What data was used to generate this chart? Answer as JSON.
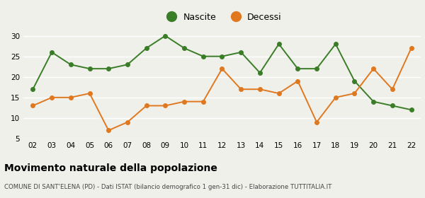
{
  "years": [
    "02",
    "03",
    "04",
    "05",
    "06",
    "07",
    "08",
    "09",
    "10",
    "11",
    "12",
    "13",
    "14",
    "15",
    "16",
    "17",
    "18",
    "19",
    "20",
    "21",
    "22"
  ],
  "nascite": [
    17,
    26,
    23,
    22,
    22,
    23,
    27,
    30,
    27,
    25,
    25,
    26,
    21,
    28,
    22,
    22,
    28,
    19,
    14,
    13,
    12
  ],
  "decessi": [
    13,
    15,
    15,
    16,
    7,
    9,
    13,
    13,
    14,
    14,
    22,
    17,
    17,
    16,
    19,
    9,
    15,
    16,
    22,
    17,
    27
  ],
  "nascite_color": "#3a7d27",
  "decessi_color": "#e07820",
  "bg_color": "#f0f0eb",
  "grid_color": "#ffffff",
  "title": "Movimento naturale della popolazione",
  "subtitle": "COMUNE DI SANT'ELENA (PD) - Dati ISTAT (bilancio demografico 1 gen-31 dic) - Elaborazione TUTTITALIA.IT",
  "legend_nascite": "Nascite",
  "legend_decessi": "Decessi",
  "ylim": [
    5,
    31
  ],
  "yticks": [
    5,
    10,
    15,
    20,
    25,
    30
  ]
}
